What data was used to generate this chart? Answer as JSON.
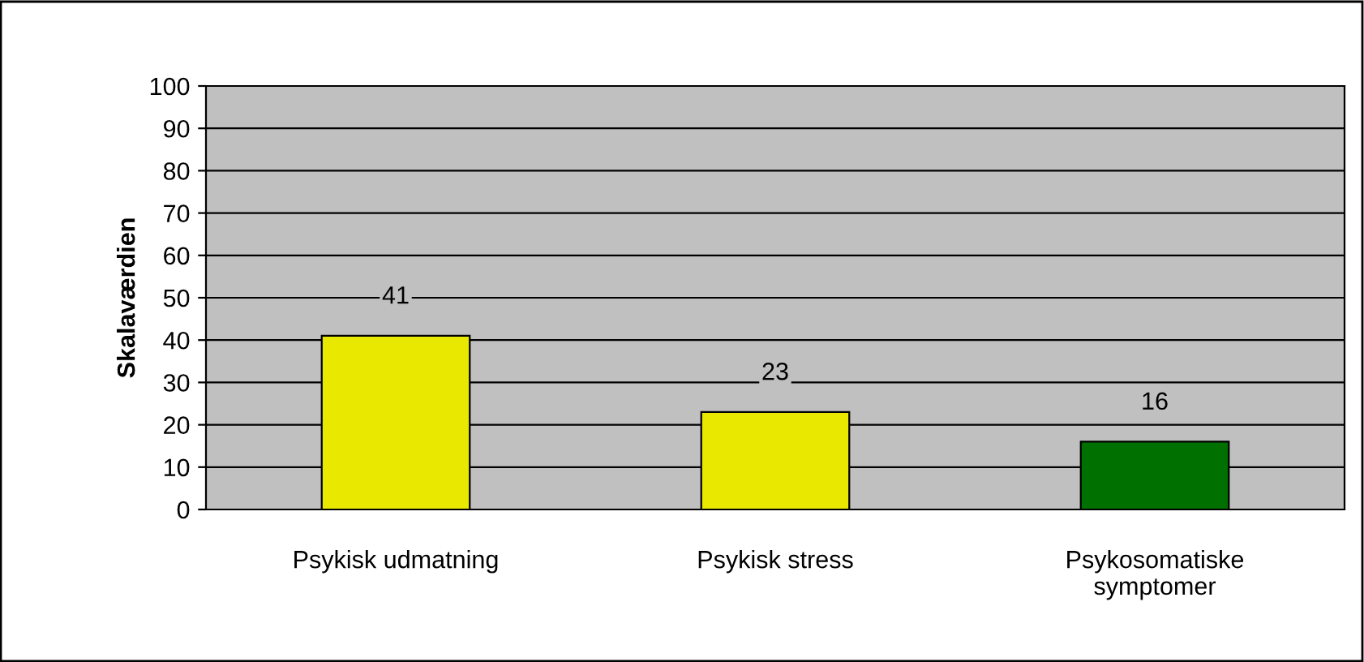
{
  "chart_data": {
    "type": "bar",
    "ylabel": "Skalaværdien",
    "categories": [
      "Psykisk udmatning",
      "Psykisk stress",
      "Psykosomatiske\nsymptomer"
    ],
    "values": [
      41,
      23,
      16
    ],
    "colors": [
      "#e8e800",
      "#e8e800",
      "#007000"
    ],
    "ylim": [
      0,
      100
    ],
    "yticks": [
      0,
      10,
      20,
      30,
      40,
      50,
      60,
      70,
      80,
      90,
      100
    ],
    "grid": "y",
    "data_labels": true
  }
}
